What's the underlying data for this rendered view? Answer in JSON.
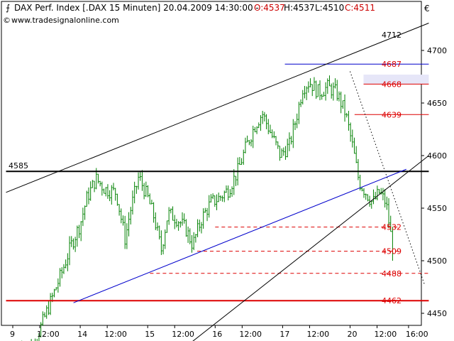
{
  "header": {
    "instrument": "DAX Perf. Index [.DAX  15 Minuten] 20.04.2009 14:30:00 -",
    "open": "O:4537",
    "high": "H:4537",
    "low": "L:4510",
    "close": "C:4511",
    "website": "www.tradesignalonline.com",
    "currency": "€"
  },
  "colors": {
    "candle": "#008000",
    "level_red": "#dd0000",
    "channel": "#000000",
    "trend_blue": "#0000cc",
    "highlight_band": "#e6e6f8",
    "grid": "#cccccc"
  },
  "chart_data": {
    "type": "candlestick",
    "title": "DAX Perf. Index [.DAX  15 Minuten]",
    "ylim": [
      4420,
      4720
    ],
    "y_ticks": [
      4450,
      4500,
      4550,
      4600,
      4650,
      4700
    ],
    "x_ticks": [
      {
        "label": "9",
        "t": 0
      },
      {
        "label": "12:00",
        "t": 1.2
      },
      {
        "label": "14",
        "t": 3.0
      },
      {
        "label": "12:00",
        "t": 4.2
      },
      {
        "label": "15",
        "t": 6.0
      },
      {
        "label": "12:00",
        "t": 7.2
      },
      {
        "label": "16",
        "t": 9.0
      },
      {
        "label": "12:00",
        "t": 10.2
      },
      {
        "label": "17",
        "t": 12.0
      },
      {
        "label": "12:00",
        "t": 13.2
      },
      {
        "label": "20",
        "t": 15.0
      },
      {
        "label": "12:00",
        "t": 16.2
      },
      {
        "label": "16:00",
        "t": 17.6
      }
    ],
    "price_path": [
      [
        0.4,
        4420
      ],
      [
        0.9,
        4418
      ],
      [
        1.3,
        4440
      ],
      [
        1.7,
        4462
      ],
      [
        2.2,
        4490
      ],
      [
        2.6,
        4515
      ],
      [
        3.0,
        4535
      ],
      [
        3.3,
        4560
      ],
      [
        3.7,
        4578
      ],
      [
        4.1,
        4568
      ],
      [
        4.6,
        4565
      ],
      [
        5.0,
        4520
      ],
      [
        5.2,
        4545
      ],
      [
        5.6,
        4580
      ],
      [
        6.0,
        4560
      ],
      [
        6.3,
        4540
      ],
      [
        6.6,
        4510
      ],
      [
        6.9,
        4545
      ],
      [
        7.3,
        4540
      ],
      [
        7.7,
        4530
      ],
      [
        8.0,
        4515
      ],
      [
        8.4,
        4540
      ],
      [
        8.8,
        4555
      ],
      [
        9.2,
        4560
      ],
      [
        9.6,
        4568
      ],
      [
        10.0,
        4585
      ],
      [
        10.4,
        4610
      ],
      [
        10.8,
        4630
      ],
      [
        11.1,
        4640
      ],
      [
        11.5,
        4620
      ],
      [
        11.9,
        4600
      ],
      [
        12.3,
        4610
      ],
      [
        12.6,
        4635
      ],
      [
        12.9,
        4665
      ],
      [
        13.2,
        4670
      ],
      [
        13.6,
        4660
      ],
      [
        14.0,
        4665
      ],
      [
        14.4,
        4660
      ],
      [
        14.8,
        4640
      ],
      [
        15.1,
        4610
      ],
      [
        15.4,
        4575
      ],
      [
        15.7,
        4565
      ],
      [
        16.0,
        4555
      ],
      [
        16.3,
        4565
      ],
      [
        16.6,
        4555
      ],
      [
        16.9,
        4511
      ]
    ],
    "levels": [
      {
        "label": "4712",
        "value": 4712,
        "color": "#000000"
      },
      {
        "label": "4687",
        "value": 4687,
        "color": "#dd0000"
      },
      {
        "label": "4668",
        "value": 4668,
        "color": "#dd0000"
      },
      {
        "label": "4639",
        "value": 4639,
        "color": "#dd0000"
      },
      {
        "label": "4585",
        "value": 4585,
        "color": "#000000"
      },
      {
        "label": "4532",
        "value": 4532,
        "color": "#dd0000"
      },
      {
        "label": "4509",
        "value": 4509,
        "color": "#dd0000"
      },
      {
        "label": "4488",
        "value": 4488,
        "color": "#dd0000"
      },
      {
        "label": "4462",
        "value": 4462,
        "color": "#dd0000"
      }
    ],
    "lines": [
      {
        "kind": "blue-top",
        "from": [
          12.1,
          4687
        ],
        "to": [
          18.5,
          4687
        ],
        "color": "#0000cc"
      },
      {
        "kind": "support-4585",
        "from": [
          -0.3,
          4585
        ],
        "to": [
          18.5,
          4585
        ],
        "color": "#000000"
      },
      {
        "kind": "resistance-4462",
        "from": [
          -0.3,
          4462
        ],
        "to": [
          18.5,
          4462
        ],
        "color": "#dd0000"
      },
      {
        "kind": "level-4668",
        "from": [
          15.6,
          4668
        ],
        "to": [
          18.5,
          4668
        ],
        "color": "#dd0000"
      },
      {
        "kind": "level-4639",
        "from": [
          15.2,
          4639
        ],
        "to": [
          18.5,
          4639
        ],
        "color": "#dd0000"
      },
      {
        "kind": "dash-4532",
        "from": [
          9.0,
          4532
        ],
        "to": [
          17.2,
          4532
        ],
        "color": "#dd0000",
        "dashed": true
      },
      {
        "kind": "dash-4509",
        "from": [
          8.2,
          4509
        ],
        "to": [
          17.2,
          4509
        ],
        "color": "#dd0000",
        "dashed": true
      },
      {
        "kind": "dash-4488",
        "from": [
          6.1,
          4488
        ],
        "to": [
          18.5,
          4488
        ],
        "color": "#dd0000",
        "dashed": true
      },
      {
        "kind": "channel-upper",
        "from": [
          -0.3,
          4565
        ],
        "to": [
          18.5,
          4726
        ],
        "color": "#000000"
      },
      {
        "kind": "channel-lower",
        "from": [
          7.8,
          4420
        ],
        "to": [
          18.5,
          4600
        ],
        "color": "#000000"
      },
      {
        "kind": "trend-blue",
        "from": [
          2.7,
          4460
        ],
        "to": [
          17.5,
          4587
        ],
        "color": "#0000cc"
      },
      {
        "kind": "dotted-down",
        "from": [
          15.0,
          4680
        ],
        "to": [
          18.3,
          4478
        ],
        "color": "#000000",
        "dotted": true
      }
    ],
    "band": {
      "from_t": 15.6,
      "to_t": 18.5,
      "low": 4668,
      "high": 4677
    },
    "grid": false,
    "legend": "none"
  }
}
